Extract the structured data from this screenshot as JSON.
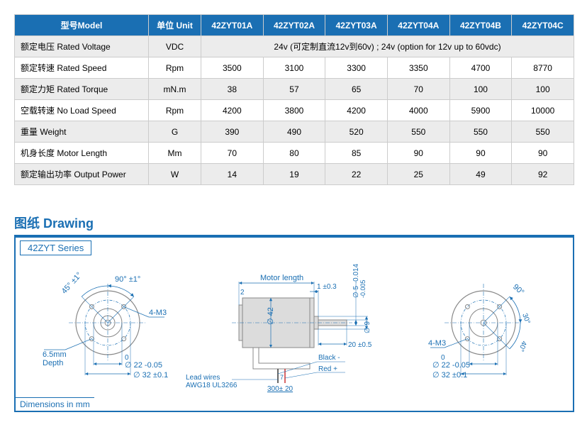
{
  "table": {
    "header": {
      "model": "型号Model",
      "unit": "单位 Unit",
      "c1": "42ZYT01A",
      "c2": "42ZYT02A",
      "c3": "42ZYT03A",
      "c4": "42ZYT04A",
      "c5": "42ZYT04B",
      "c6": "42ZYT04C"
    },
    "rows": [
      {
        "label": "额定电压 Rated Voltage",
        "unit": "VDC",
        "span": "24v (可定制直流12v到60v) ;   24v (option for 12v up to 60vdc)",
        "alt": true
      },
      {
        "label": "额定转速 Rated Speed",
        "unit": "Rpm",
        "v": [
          "3500",
          "3100",
          "3300",
          "3350",
          "4700",
          "8770"
        ],
        "alt": false
      },
      {
        "label": "额定力矩 Rated Torque",
        "unit": "mN.m",
        "v": [
          "38",
          "57",
          "65",
          "70",
          "100",
          "100"
        ],
        "alt": true
      },
      {
        "label": "空载转速 No Load Speed",
        "unit": "Rpm",
        "v": [
          "4200",
          "3800",
          "4200",
          "4000",
          "5900",
          "10000"
        ],
        "alt": false
      },
      {
        "label": "重量 Weight",
        "unit": "G",
        "v": [
          "390",
          "490",
          "520",
          "550",
          "550",
          "550"
        ],
        "alt": true
      },
      {
        "label": "机身长度 Motor Length",
        "unit": "Mm",
        "v": [
          "70",
          "80",
          "85",
          "90",
          "90",
          "90"
        ],
        "alt": false
      },
      {
        "label": "额定输出功率 Output Power",
        "unit": "W",
        "v": [
          "14",
          "19",
          "22",
          "25",
          "49",
          "92"
        ],
        "alt": true
      }
    ]
  },
  "drawing": {
    "title": "图纸 Drawing",
    "series_tab": "42ZYT Series",
    "dim_footer": "Dimensions in mm",
    "colors": {
      "line": "#1a6fb3",
      "thin": "#1a6fb3",
      "text": "#1a6fb3",
      "motor_fill": "#dcdcdc",
      "motor_stroke": "#888"
    },
    "labels": {
      "ang90": "90°  ±1°",
      "ang45": "45°  ±1°",
      "m3": "4-M3",
      "depth": "6.5mm\nDepth",
      "d22": "∅ 22 -0.05",
      "d22_zero": "0",
      "d32": "∅ 32 ±0.1",
      "motor_length": "Motor length",
      "tol_1_03": "1 ±0.3",
      "num2": "2",
      "d42": "∅ 42",
      "d5": "∅ 5 -0.014",
      "d5_up": "-0.005",
      "d9": "∅ 9",
      "l20": "20 ±0.5",
      "black": "Black -",
      "red": "Red +",
      "l7": "7",
      "l300": "300± 20",
      "leads": "Lead wires\nAWG18 UL3266",
      "r_ang90": "90°",
      "r_ang30": "30°",
      "r_ang40": "40°",
      "r_m3": "4-M3",
      "r_d22": "∅ 22 -0.05",
      "r_d22_zero": "0",
      "r_d32": "∅ 32 ±0.1"
    }
  }
}
